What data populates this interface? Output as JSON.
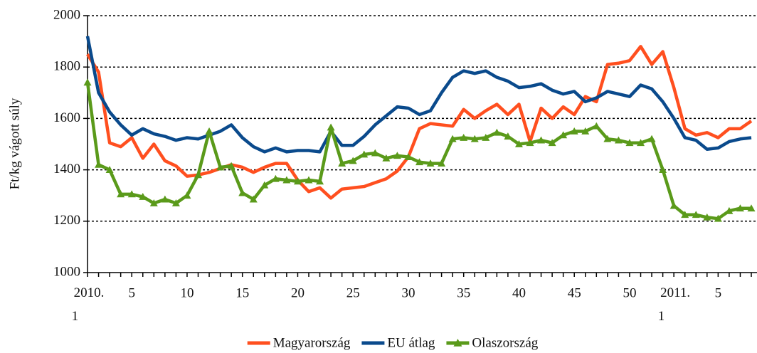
{
  "chart_data": {
    "type": "line",
    "ylabel": "Ft/kg vágott súly",
    "categories": [
      "2010. 1",
      null,
      null,
      null,
      "5",
      null,
      null,
      null,
      null,
      "10",
      null,
      null,
      null,
      null,
      "15",
      null,
      null,
      null,
      null,
      "20",
      null,
      null,
      null,
      null,
      "25",
      null,
      null,
      null,
      null,
      "30",
      null,
      null,
      null,
      null,
      "35",
      null,
      null,
      null,
      null,
      "40",
      null,
      null,
      null,
      null,
      "45",
      null,
      null,
      null,
      null,
      "50",
      null,
      null,
      null,
      "2011. 1",
      null,
      null,
      null,
      "5",
      null,
      null,
      null
    ],
    "series": [
      {
        "name": "Magyarország",
        "color": "#ff4f1f",
        "marker": "none",
        "values": [
          1850,
          1780,
          1505,
          1490,
          1525,
          1445,
          1500,
          1435,
          1415,
          1375,
          1380,
          1390,
          1405,
          1420,
          1410,
          1390,
          1410,
          1425,
          1425,
          1360,
          1315,
          1330,
          1290,
          1325,
          1330,
          1335,
          1350,
          1365,
          1395,
          1450,
          1560,
          1580,
          1575,
          1570,
          1635,
          1600,
          1630,
          1655,
          1615,
          1655,
          1510,
          1640,
          1600,
          1645,
          1615,
          1685,
          1665,
          1810,
          1815,
          1825,
          1880,
          1810,
          1860,
          1720,
          1560,
          1535,
          1545,
          1525,
          1560,
          1560,
          1590
        ]
      },
      {
        "name": "EU átlag",
        "color": "#0a4a8c",
        "marker": "none",
        "values": [
          1920,
          1700,
          1625,
          1575,
          1535,
          1560,
          1540,
          1530,
          1515,
          1525,
          1520,
          1535,
          1550,
          1575,
          1525,
          1490,
          1470,
          1485,
          1470,
          1475,
          1475,
          1470,
          1550,
          1495,
          1495,
          1530,
          1575,
          1610,
          1645,
          1640,
          1615,
          1630,
          1700,
          1760,
          1785,
          1775,
          1785,
          1760,
          1745,
          1720,
          1725,
          1735,
          1710,
          1695,
          1705,
          1665,
          1680,
          1705,
          1695,
          1685,
          1730,
          1715,
          1665,
          1600,
          1525,
          1515,
          1480,
          1485,
          1510,
          1520,
          1525
        ]
      },
      {
        "name": "Olaszország",
        "color": "#5a9a1a",
        "marker": "triangle",
        "values": [
          1740,
          1420,
          1400,
          1305,
          1305,
          1295,
          1270,
          1285,
          1270,
          1300,
          1380,
          1550,
          1410,
          1415,
          1310,
          1285,
          1340,
          1365,
          1360,
          1355,
          1360,
          1355,
          1565,
          1425,
          1435,
          1460,
          1465,
          1445,
          1455,
          1450,
          1430,
          1425,
          1425,
          1520,
          1525,
          1520,
          1525,
          1545,
          1530,
          1500,
          1505,
          1515,
          1505,
          1535,
          1550,
          1550,
          1570,
          1520,
          1515,
          1505,
          1505,
          1520,
          1400,
          1260,
          1225,
          1225,
          1215,
          1210,
          1240,
          1250,
          1250
        ]
      }
    ],
    "ylim": [
      1000,
      2000
    ],
    "yticks": [
      1000,
      1200,
      1400,
      1600,
      1800,
      2000
    ],
    "grid": true,
    "legend": "bottom"
  }
}
